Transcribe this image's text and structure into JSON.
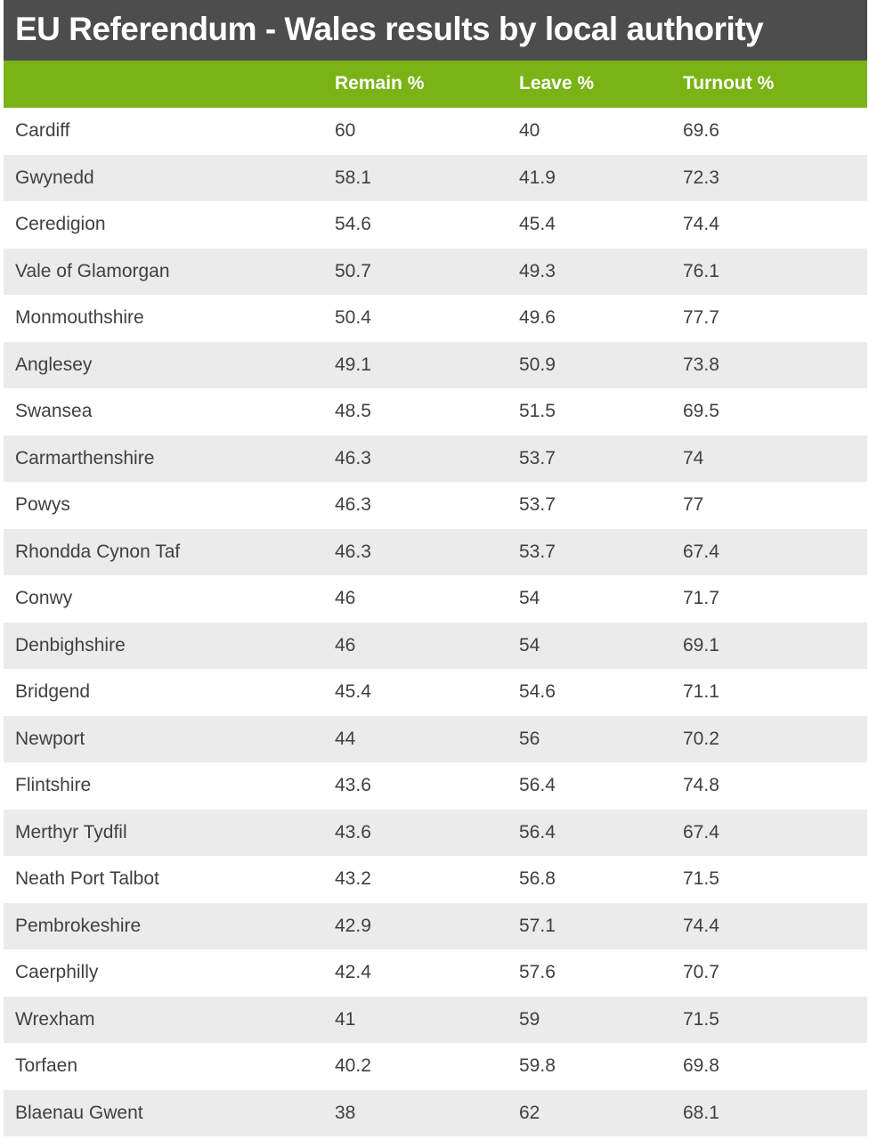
{
  "chart_data": {
    "type": "table",
    "title": "EU Referendum - Wales results by local authority",
    "columns": [
      "",
      "Remain %",
      "Leave %",
      "Turnout %"
    ],
    "rows": [
      [
        "Cardiff",
        "60",
        "40",
        "69.6"
      ],
      [
        "Gwynedd",
        "58.1",
        "41.9",
        "72.3"
      ],
      [
        "Ceredigion",
        "54.6",
        "45.4",
        "74.4"
      ],
      [
        "Vale of Glamorgan",
        "50.7",
        "49.3",
        "76.1"
      ],
      [
        "Monmouthshire",
        "50.4",
        "49.6",
        "77.7"
      ],
      [
        "Anglesey",
        "49.1",
        "50.9",
        "73.8"
      ],
      [
        "Swansea",
        "48.5",
        "51.5",
        "69.5"
      ],
      [
        "Carmarthenshire",
        "46.3",
        "53.7",
        "74"
      ],
      [
        "Powys",
        "46.3",
        "53.7",
        "77"
      ],
      [
        "Rhondda Cynon Taf",
        "46.3",
        "53.7",
        "67.4"
      ],
      [
        "Conwy",
        "46",
        "54",
        "71.7"
      ],
      [
        "Denbighshire",
        "46",
        "54",
        "69.1"
      ],
      [
        "Bridgend",
        "45.4",
        "54.6",
        "71.1"
      ],
      [
        "Newport",
        "44",
        "56",
        "70.2"
      ],
      [
        "Flintshire",
        "43.6",
        "56.4",
        "74.8"
      ],
      [
        "Merthyr Tydfil",
        "43.6",
        "56.4",
        "67.4"
      ],
      [
        "Neath Port Talbot",
        "43.2",
        "56.8",
        "71.5"
      ],
      [
        "Pembrokeshire",
        "42.9",
        "57.1",
        "74.4"
      ],
      [
        "Caerphilly",
        "42.4",
        "57.6",
        "70.7"
      ],
      [
        "Wrexham",
        "41",
        "59",
        "71.5"
      ],
      [
        "Torfaen",
        "40.2",
        "59.8",
        "69.8"
      ],
      [
        "Blaenau Gwent",
        "38",
        "62",
        "68.1"
      ]
    ]
  },
  "colors": {
    "title_background": "#4d4d4d",
    "header_background": "#7ab316",
    "row_alternate": "#ebebeb",
    "text": "#404040"
  }
}
